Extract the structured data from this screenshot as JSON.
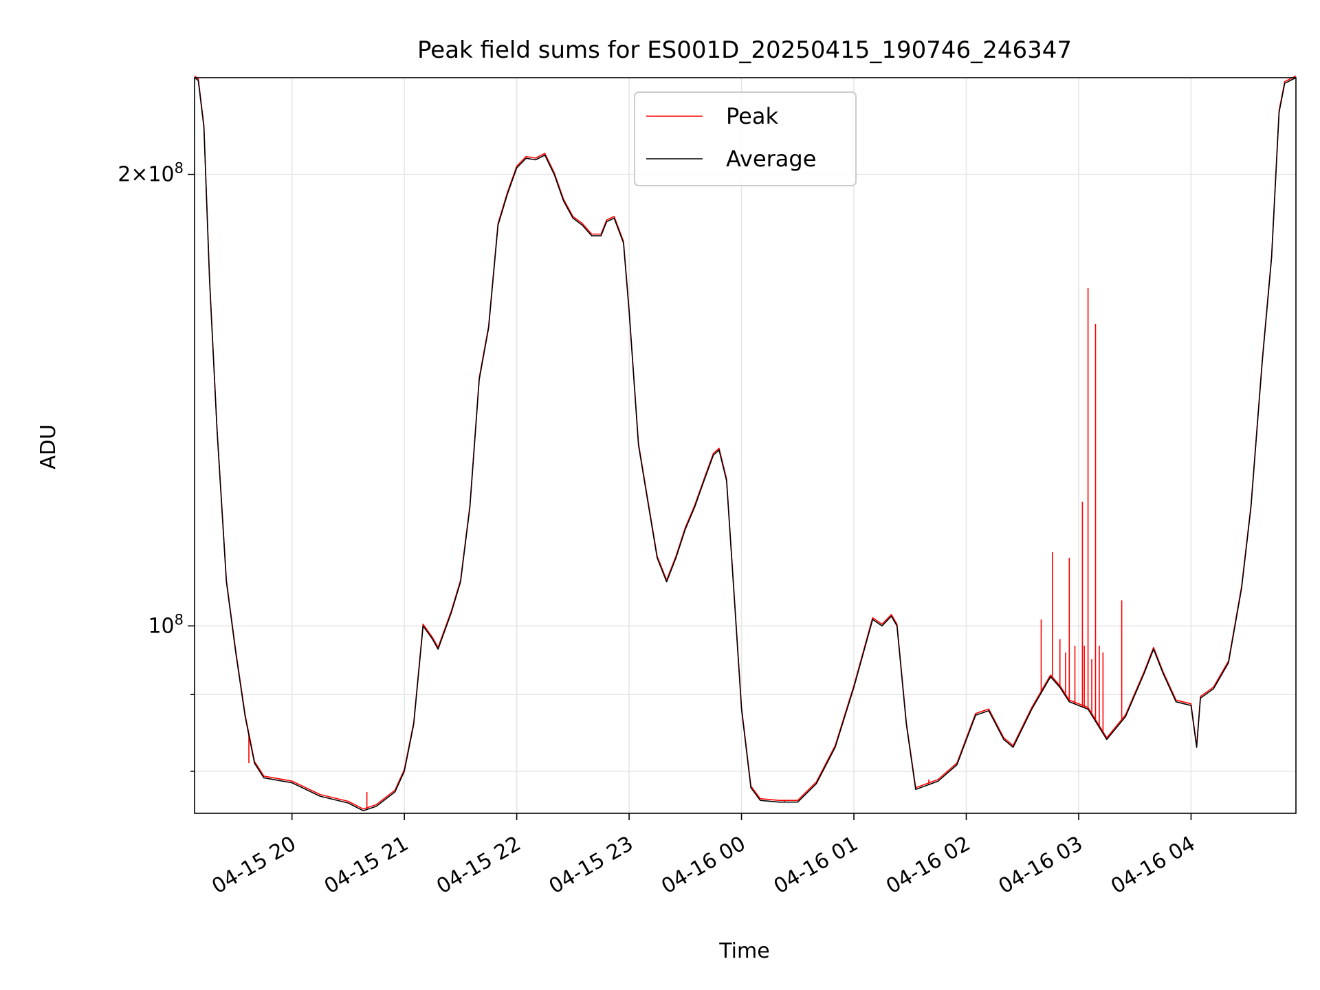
{
  "chart_data": {
    "type": "line",
    "title": "Peak field sums for ES001D_20250415_190746_246347",
    "xlabel": "Time",
    "ylabel": "ADU",
    "yscale": "log",
    "grid": true,
    "legend_position": "top-center",
    "x_ticks": [
      "04-15 20",
      "04-15 21",
      "04-15 22",
      "04-15 23",
      "04-16 00",
      "04-16 01",
      "04-16 02",
      "04-16 03",
      "04-16 04"
    ],
    "y_tick_labels": [
      {
        "value": 200000000,
        "mantissa": "2",
        "times": "×",
        "base": "10",
        "exponent": "8"
      },
      {
        "value": 100000000,
        "mantissa": "",
        "times": "",
        "base": "10",
        "exponent": "8"
      }
    ],
    "x_range": [
      "2025-04-15 19:08",
      "2025-04-16 04:56"
    ],
    "ylim": [
      75000000,
      232000000
    ],
    "series": [
      {
        "name": "Peak",
        "color": "#ff0000",
        "spikes": [
          {
            "t": "2025-04-16 02:40",
            "v": 101000000
          },
          {
            "t": "2025-04-16 02:46",
            "v": 112000000
          },
          {
            "t": "2025-04-16 02:50",
            "v": 98000000
          },
          {
            "t": "2025-04-16 02:53",
            "v": 96000000
          },
          {
            "t": "2025-04-16 02:55",
            "v": 111000000
          },
          {
            "t": "2025-04-16 02:58",
            "v": 97000000
          },
          {
            "t": "2025-04-16 03:02",
            "v": 121000000
          },
          {
            "t": "2025-04-16 03:03",
            "v": 97000000
          },
          {
            "t": "2025-04-16 03:05",
            "v": 168000000
          },
          {
            "t": "2025-04-16 03:07",
            "v": 95000000
          },
          {
            "t": "2025-04-16 03:09",
            "v": 159000000
          },
          {
            "t": "2025-04-16 03:11",
            "v": 97000000
          },
          {
            "t": "2025-04-16 03:13",
            "v": 96000000
          },
          {
            "t": "2025-04-16 03:23",
            "v": 104000000
          },
          {
            "t": "2025-04-15 19:37",
            "v": 81000000
          },
          {
            "t": "2025-04-15 19:48",
            "v": 79000000
          },
          {
            "t": "2025-04-15 20:14",
            "v": 77000000
          },
          {
            "t": "2025-04-15 20:40",
            "v": 77500000
          },
          {
            "t": "2025-04-16 00:23",
            "v": 76500000
          },
          {
            "t": "2025-04-16 01:40",
            "v": 79000000
          }
        ]
      },
      {
        "name": "Average",
        "color": "#000000",
        "points": [
          [
            "2025-04-15 19:08",
            232000000
          ],
          [
            "2025-04-15 19:10",
            231000000
          ],
          [
            "2025-04-15 19:13",
            215000000
          ],
          [
            "2025-04-15 19:16",
            170000000
          ],
          [
            "2025-04-15 19:20",
            135000000
          ],
          [
            "2025-04-15 19:25",
            107000000
          ],
          [
            "2025-04-15 19:30",
            96000000
          ],
          [
            "2025-04-15 19:35",
            87000000
          ],
          [
            "2025-04-15 19:40",
            81000000
          ],
          [
            "2025-04-15 19:45",
            79200000
          ],
          [
            "2025-04-15 20:00",
            78600000
          ],
          [
            "2025-04-15 20:15",
            77000000
          ],
          [
            "2025-04-15 20:30",
            76200000
          ],
          [
            "2025-04-15 20:38",
            75300000
          ],
          [
            "2025-04-15 20:45",
            75800000
          ],
          [
            "2025-04-15 20:55",
            77500000
          ],
          [
            "2025-04-15 21:00",
            80000000
          ],
          [
            "2025-04-15 21:05",
            86000000
          ],
          [
            "2025-04-15 21:10",
            100000000
          ],
          [
            "2025-04-15 21:15",
            98000000
          ],
          [
            "2025-04-15 21:18",
            96500000
          ],
          [
            "2025-04-15 21:25",
            102000000
          ],
          [
            "2025-04-15 21:30",
            107000000
          ],
          [
            "2025-04-15 21:35",
            120000000
          ],
          [
            "2025-04-15 21:40",
            146000000
          ],
          [
            "2025-04-15 21:45",
            158000000
          ],
          [
            "2025-04-15 21:50",
            185000000
          ],
          [
            "2025-04-15 21:55",
            194000000
          ],
          [
            "2025-04-15 22:00",
            202000000
          ],
          [
            "2025-04-15 22:05",
            205000000
          ],
          [
            "2025-04-15 22:10",
            204500000
          ],
          [
            "2025-04-15 22:15",
            206000000
          ],
          [
            "2025-04-15 22:20",
            200000000
          ],
          [
            "2025-04-15 22:25",
            192000000
          ],
          [
            "2025-04-15 22:30",
            187000000
          ],
          [
            "2025-04-15 22:35",
            185000000
          ],
          [
            "2025-04-15 22:40",
            182000000
          ],
          [
            "2025-04-15 22:45",
            182000000
          ],
          [
            "2025-04-15 22:48",
            186000000
          ],
          [
            "2025-04-15 22:52",
            187000000
          ],
          [
            "2025-04-15 22:57",
            180000000
          ],
          [
            "2025-04-15 23:00",
            162000000
          ],
          [
            "2025-04-15 23:05",
            132000000
          ],
          [
            "2025-04-15 23:10",
            121000000
          ],
          [
            "2025-04-15 23:15",
            111000000
          ],
          [
            "2025-04-15 23:20",
            107000000
          ],
          [
            "2025-04-15 23:25",
            111000000
          ],
          [
            "2025-04-15 23:30",
            116000000
          ],
          [
            "2025-04-15 23:35",
            120000000
          ],
          [
            "2025-04-15 23:40",
            125000000
          ],
          [
            "2025-04-15 23:45",
            130000000
          ],
          [
            "2025-04-15 23:48",
            131000000
          ],
          [
            "2025-04-15 23:52",
            125000000
          ],
          [
            "2025-04-15 23:56",
            105000000
          ],
          [
            "2025-04-16 00:00",
            88000000
          ],
          [
            "2025-04-16 00:05",
            78000000
          ],
          [
            "2025-04-16 00:10",
            76500000
          ],
          [
            "2025-04-16 00:20",
            76300000
          ],
          [
            "2025-04-16 00:30",
            76300000
          ],
          [
            "2025-04-16 00:40",
            78500000
          ],
          [
            "2025-04-16 00:50",
            83000000
          ],
          [
            "2025-04-16 01:00",
            91000000
          ],
          [
            "2025-04-16 01:10",
            101000000
          ],
          [
            "2025-04-16 01:15",
            100000000
          ],
          [
            "2025-04-16 01:20",
            101500000
          ],
          [
            "2025-04-16 01:23",
            100000000
          ],
          [
            "2025-04-16 01:28",
            86000000
          ],
          [
            "2025-04-16 01:33",
            77800000
          ],
          [
            "2025-04-16 01:45",
            78800000
          ],
          [
            "2025-04-16 01:55",
            80800000
          ],
          [
            "2025-04-16 02:05",
            87200000
          ],
          [
            "2025-04-16 02:12",
            87800000
          ],
          [
            "2025-04-16 02:20",
            84000000
          ],
          [
            "2025-04-16 02:25",
            83000000
          ],
          [
            "2025-04-16 02:35",
            88000000
          ],
          [
            "2025-04-16 02:45",
            92500000
          ],
          [
            "2025-04-16 02:50",
            91000000
          ],
          [
            "2025-04-16 02:55",
            89000000
          ],
          [
            "2025-04-16 03:05",
            88000000
          ],
          [
            "2025-04-16 03:15",
            84000000
          ],
          [
            "2025-04-16 03:25",
            87000000
          ],
          [
            "2025-04-16 03:35",
            93000000
          ],
          [
            "2025-04-16 03:40",
            96500000
          ],
          [
            "2025-04-16 03:45",
            93000000
          ],
          [
            "2025-04-16 03:52",
            89000000
          ],
          [
            "2025-04-16 04:00",
            88500000
          ],
          [
            "2025-04-16 04:03",
            83000000
          ],
          [
            "2025-04-16 04:05",
            89500000
          ],
          [
            "2025-04-16 04:12",
            90800000
          ],
          [
            "2025-04-16 04:20",
            94500000
          ],
          [
            "2025-04-16 04:27",
            106000000
          ],
          [
            "2025-04-16 04:32",
            120000000
          ],
          [
            "2025-04-16 04:38",
            150000000
          ],
          [
            "2025-04-16 04:43",
            176000000
          ],
          [
            "2025-04-16 04:47",
            220000000
          ],
          [
            "2025-04-16 04:50",
            230000000
          ],
          [
            "2025-04-16 04:56",
            232000000
          ]
        ]
      }
    ]
  }
}
